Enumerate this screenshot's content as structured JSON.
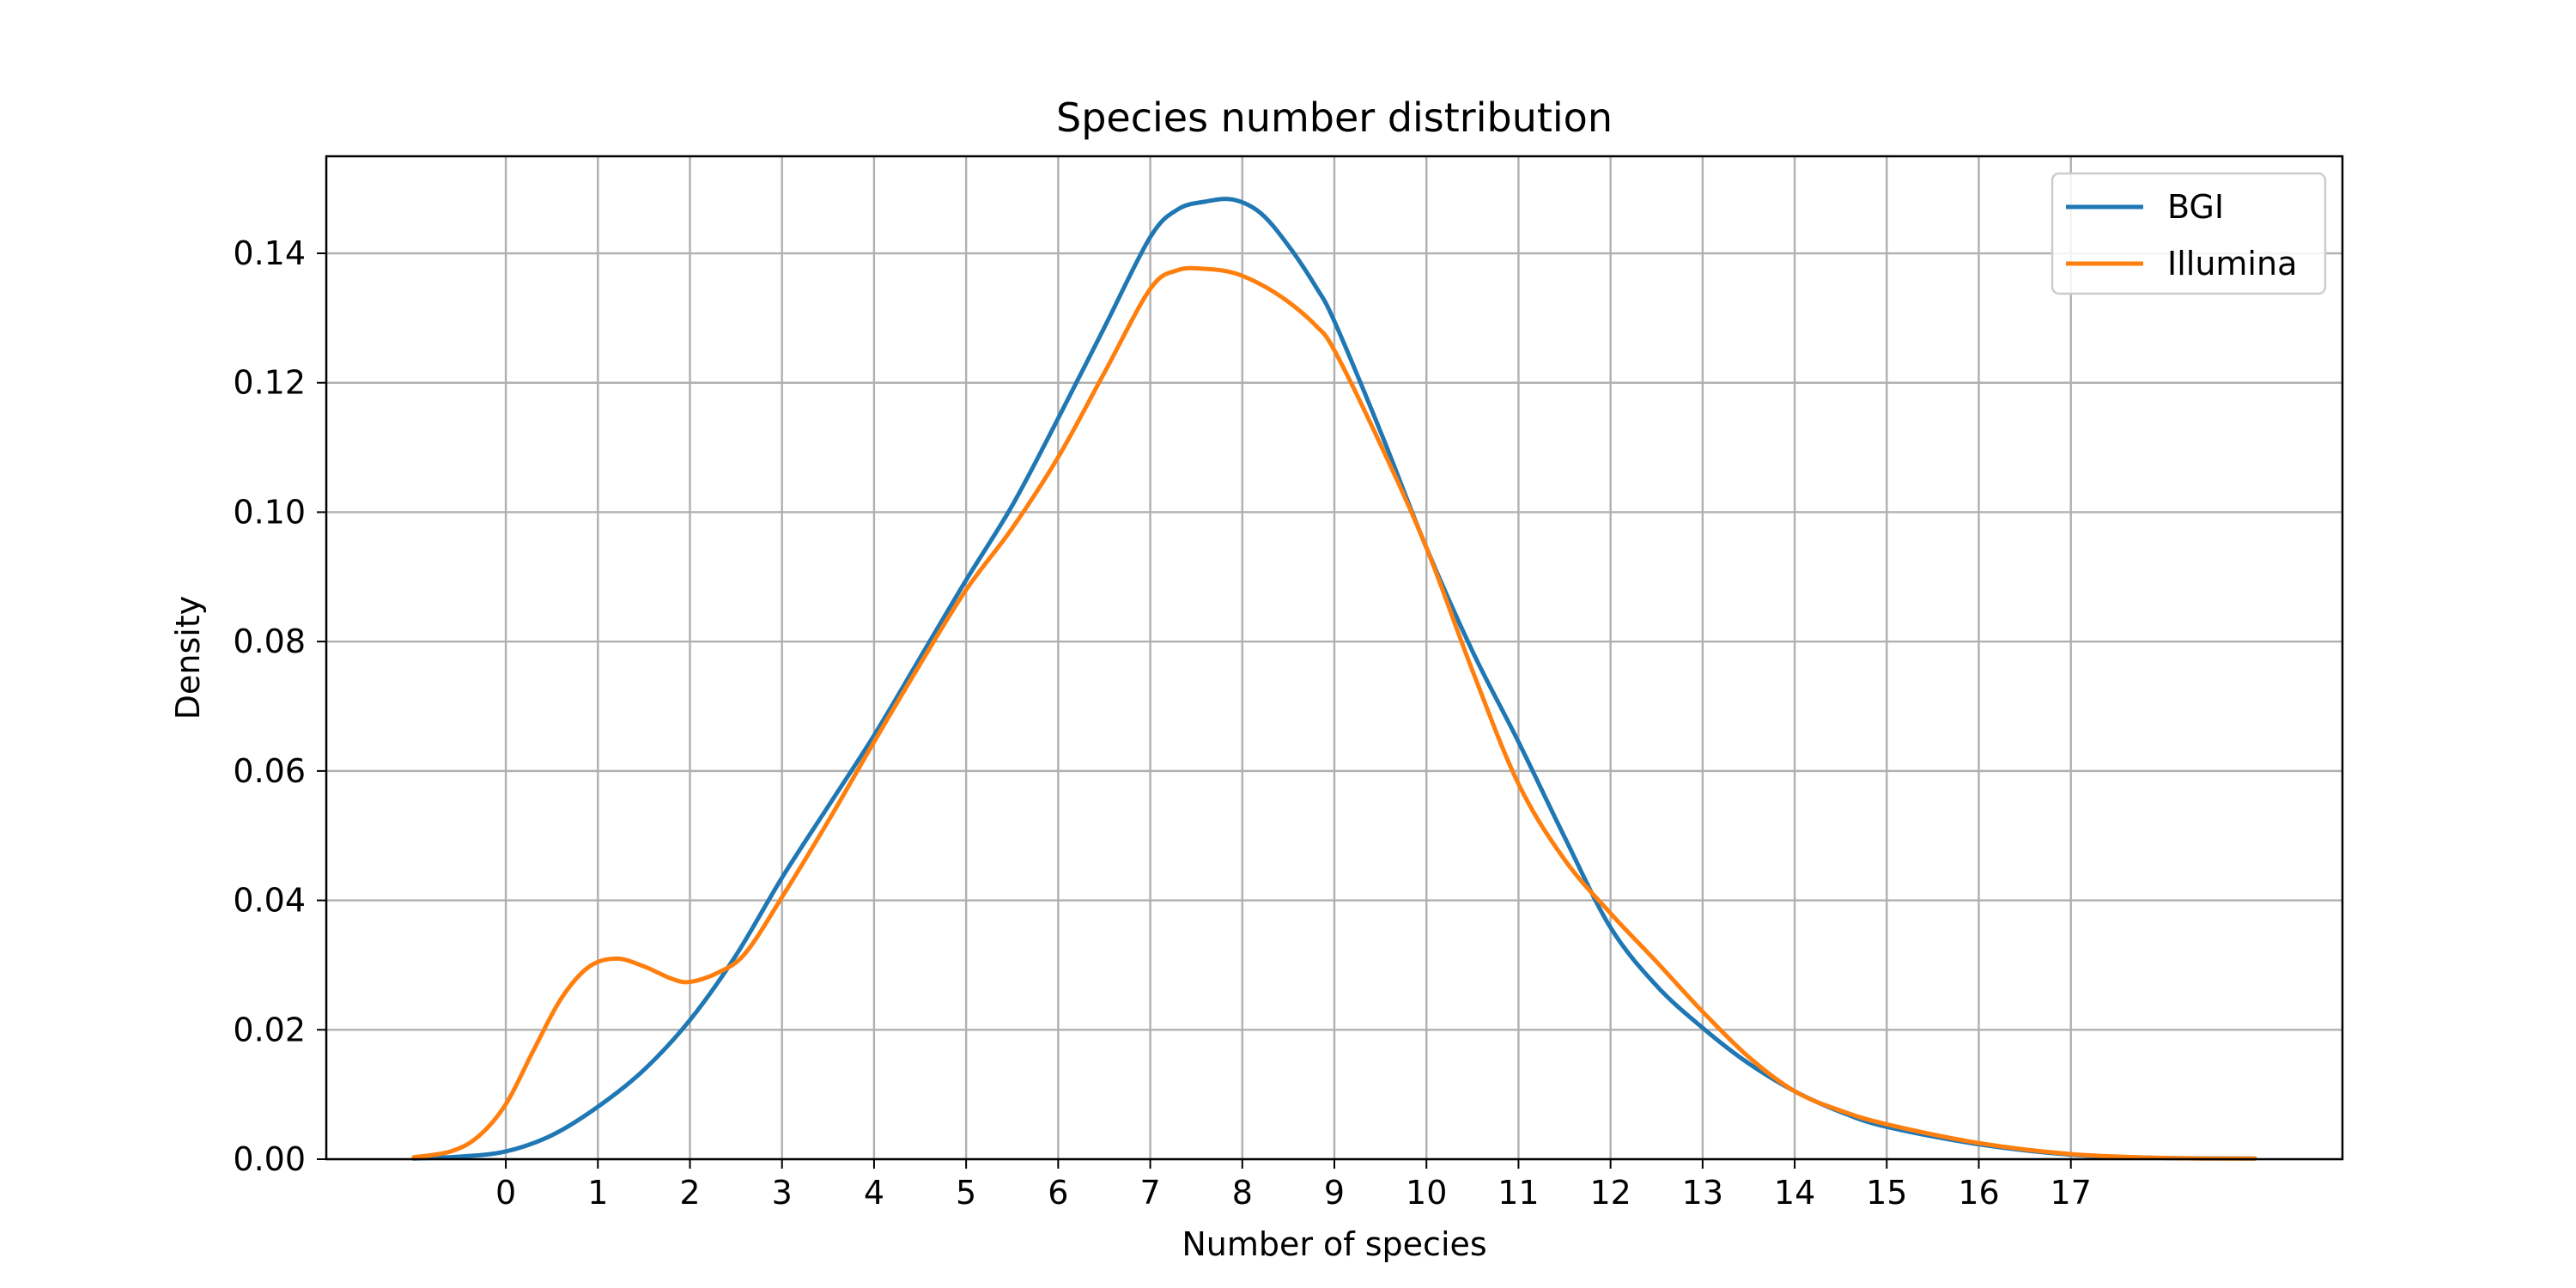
{
  "chart_data": {
    "type": "line",
    "title": "Species number distribution",
    "xlabel": "Number of species",
    "ylabel": "Density",
    "xlim": [
      -1.95,
      19.95
    ],
    "ylim": [
      0,
      0.155
    ],
    "xticks": [
      0,
      1,
      2,
      3,
      4,
      5,
      6,
      7,
      8,
      9,
      10,
      11,
      12,
      13,
      14,
      15,
      16,
      17
    ],
    "yticks": [
      0.0,
      0.02,
      0.04,
      0.06,
      0.08,
      0.1,
      0.12,
      0.14
    ],
    "ytick_labels": [
      "0.00",
      "0.02",
      "0.04",
      "0.06",
      "0.08",
      "0.10",
      "0.12",
      "0.14"
    ],
    "grid": true,
    "legend_position": "top-right",
    "series": [
      {
        "name": "BGI",
        "color": "#1f77b4",
        "x": [
          -1.0,
          -0.5,
          0.0,
          0.5,
          1.0,
          1.5,
          2.0,
          2.5,
          3.0,
          3.5,
          4.0,
          4.5,
          5.0,
          5.5,
          6.0,
          6.5,
          7.0,
          7.3,
          7.6,
          7.9,
          8.2,
          8.5,
          8.8,
          9.0,
          9.5,
          10.0,
          10.5,
          11.0,
          11.5,
          12.0,
          12.5,
          13.0,
          13.5,
          14.0,
          14.5,
          15.0,
          16.0,
          17.0,
          18.0,
          19.0
        ],
        "y": [
          0.0001,
          0.0004,
          0.0012,
          0.0037,
          0.0081,
          0.0138,
          0.0215,
          0.0315,
          0.0435,
          0.0545,
          0.0655,
          0.0775,
          0.0895,
          0.101,
          0.1145,
          0.1285,
          0.1425,
          0.1468,
          0.148,
          0.1483,
          0.1462,
          0.1412,
          0.1348,
          0.1295,
          0.1125,
          0.0945,
          0.0785,
          0.0645,
          0.0498,
          0.0358,
          0.0268,
          0.0203,
          0.0148,
          0.0105,
          0.0073,
          0.005,
          0.0023,
          0.0007,
          0.0002,
          0.0001
        ]
      },
      {
        "name": "Illumina",
        "color": "#ff7f0e",
        "x": [
          -1.0,
          -0.6,
          -0.3,
          0.0,
          0.3,
          0.6,
          0.9,
          1.2,
          1.5,
          1.8,
          2.0,
          2.3,
          2.6,
          3.0,
          3.5,
          4.0,
          4.5,
          5.0,
          5.5,
          6.0,
          6.5,
          7.0,
          7.3,
          7.6,
          7.9,
          8.2,
          8.5,
          8.8,
          9.0,
          9.5,
          10.0,
          10.5,
          11.0,
          11.5,
          12.0,
          12.5,
          13.0,
          13.5,
          14.0,
          14.5,
          15.0,
          16.0,
          17.0,
          18.0,
          19.0
        ],
        "y": [
          0.0003,
          0.0012,
          0.0035,
          0.0085,
          0.0168,
          0.0248,
          0.0297,
          0.031,
          0.0298,
          0.0279,
          0.0274,
          0.0288,
          0.0318,
          0.0405,
          0.0522,
          0.0645,
          0.0765,
          0.088,
          0.0975,
          0.1085,
          0.1215,
          0.1345,
          0.1374,
          0.1376,
          0.137,
          0.1352,
          0.1325,
          0.1288,
          0.125,
          0.1105,
          0.0945,
          0.0755,
          0.058,
          0.0463,
          0.038,
          0.0305,
          0.0228,
          0.0158,
          0.0105,
          0.0075,
          0.0054,
          0.0025,
          0.0008,
          0.0002,
          0.0001
        ]
      }
    ]
  }
}
